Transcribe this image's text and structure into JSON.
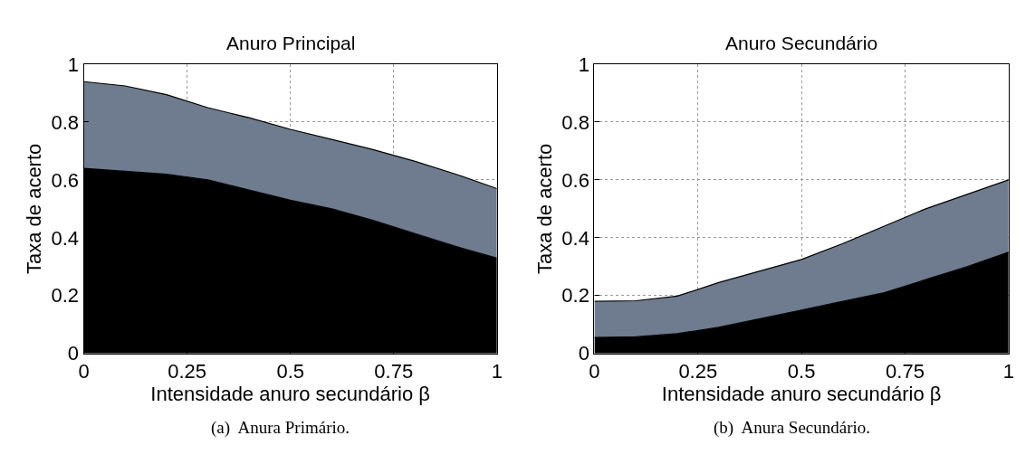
{
  "chart_data": [
    {
      "type": "area",
      "stacked": true,
      "title": "Anuro Principal",
      "xlabel": "Intensidade anuro secundário β",
      "ylabel": "Taxa de acerto",
      "x": [
        0,
        0.1,
        0.2,
        0.3,
        0.4,
        0.5,
        0.6,
        0.7,
        0.8,
        0.9,
        1
      ],
      "series": [
        {
          "color": "#000000",
          "values": [
            0.64,
            0.63,
            0.62,
            0.6,
            0.565,
            0.53,
            0.5,
            0.46,
            0.415,
            0.37,
            0.33
          ]
        },
        {
          "color": "#6f7b8e",
          "values": [
            0.3,
            0.295,
            0.275,
            0.25,
            0.25,
            0.245,
            0.24,
            0.245,
            0.25,
            0.25,
            0.24
          ]
        }
      ],
      "xlim": [
        0,
        1
      ],
      "ylim": [
        0,
        1
      ],
      "xticks": [
        0,
        0.25,
        0.5,
        0.75,
        1
      ],
      "yticks": [
        0,
        0.2,
        0.4,
        0.6,
        0.8,
        1
      ],
      "grid": true,
      "annotations": [
        "(a)  Anura Primário."
      ]
    },
    {
      "type": "area",
      "stacked": true,
      "title": "Anuro Secundário",
      "xlabel": "Intensidade anuro secundário β",
      "ylabel": "Taxa de acerto",
      "x": [
        0,
        0.1,
        0.2,
        0.3,
        0.4,
        0.5,
        0.6,
        0.7,
        0.8,
        0.9,
        1
      ],
      "series": [
        {
          "color": "#000000",
          "values": [
            0.055,
            0.057,
            0.068,
            0.09,
            0.12,
            0.15,
            0.18,
            0.21,
            0.255,
            0.3,
            0.35
          ]
        },
        {
          "color": "#6f7b8e",
          "values": [
            0.125,
            0.125,
            0.13,
            0.155,
            0.165,
            0.175,
            0.2,
            0.23,
            0.245,
            0.25,
            0.25
          ]
        }
      ],
      "xlim": [
        0,
        1
      ],
      "ylim": [
        0,
        1
      ],
      "xticks": [
        0,
        0.25,
        0.5,
        0.75,
        1
      ],
      "yticks": [
        0,
        0.2,
        0.4,
        0.6,
        0.8,
        1
      ],
      "grid": true,
      "annotations": [
        "(b)  Anura Secundário."
      ]
    }
  ]
}
